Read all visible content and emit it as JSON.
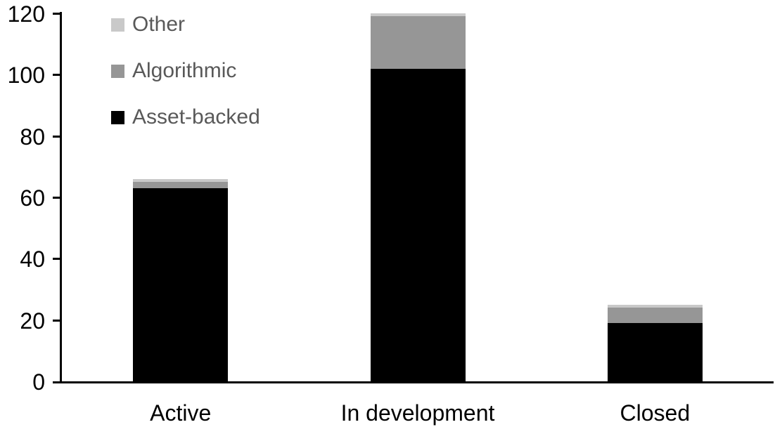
{
  "chart_data": {
    "type": "bar",
    "stacked": true,
    "title": "",
    "xlabel": "",
    "ylabel": "",
    "categories": [
      "Active",
      "In development",
      "Closed"
    ],
    "series": [
      {
        "name": "Asset-backed",
        "color": "#000000",
        "values": [
          63,
          102,
          19
        ]
      },
      {
        "name": "Algorithmic",
        "color": "#969696",
        "values": [
          2,
          17,
          5
        ]
      },
      {
        "name": "Other",
        "color": "#c9c9c9",
        "values": [
          1,
          1,
          1
        ]
      }
    ],
    "totals": [
      66,
      120,
      25
    ],
    "y_axis": {
      "min": 0,
      "max": 120,
      "tick_interval": 20,
      "tick_labels": [
        "0",
        "20",
        "40",
        "60",
        "80",
        "100",
        "120"
      ]
    },
    "legend": {
      "position": "top-left",
      "items_top_to_bottom": [
        "Other",
        "Algorithmic",
        "Asset-backed"
      ]
    },
    "grid": false,
    "colors": {
      "axis": "#000000",
      "tick_label_text": "#000000",
      "category_label_text": "#000000",
      "legend_text": "#595959",
      "background": "#ffffff"
    }
  }
}
